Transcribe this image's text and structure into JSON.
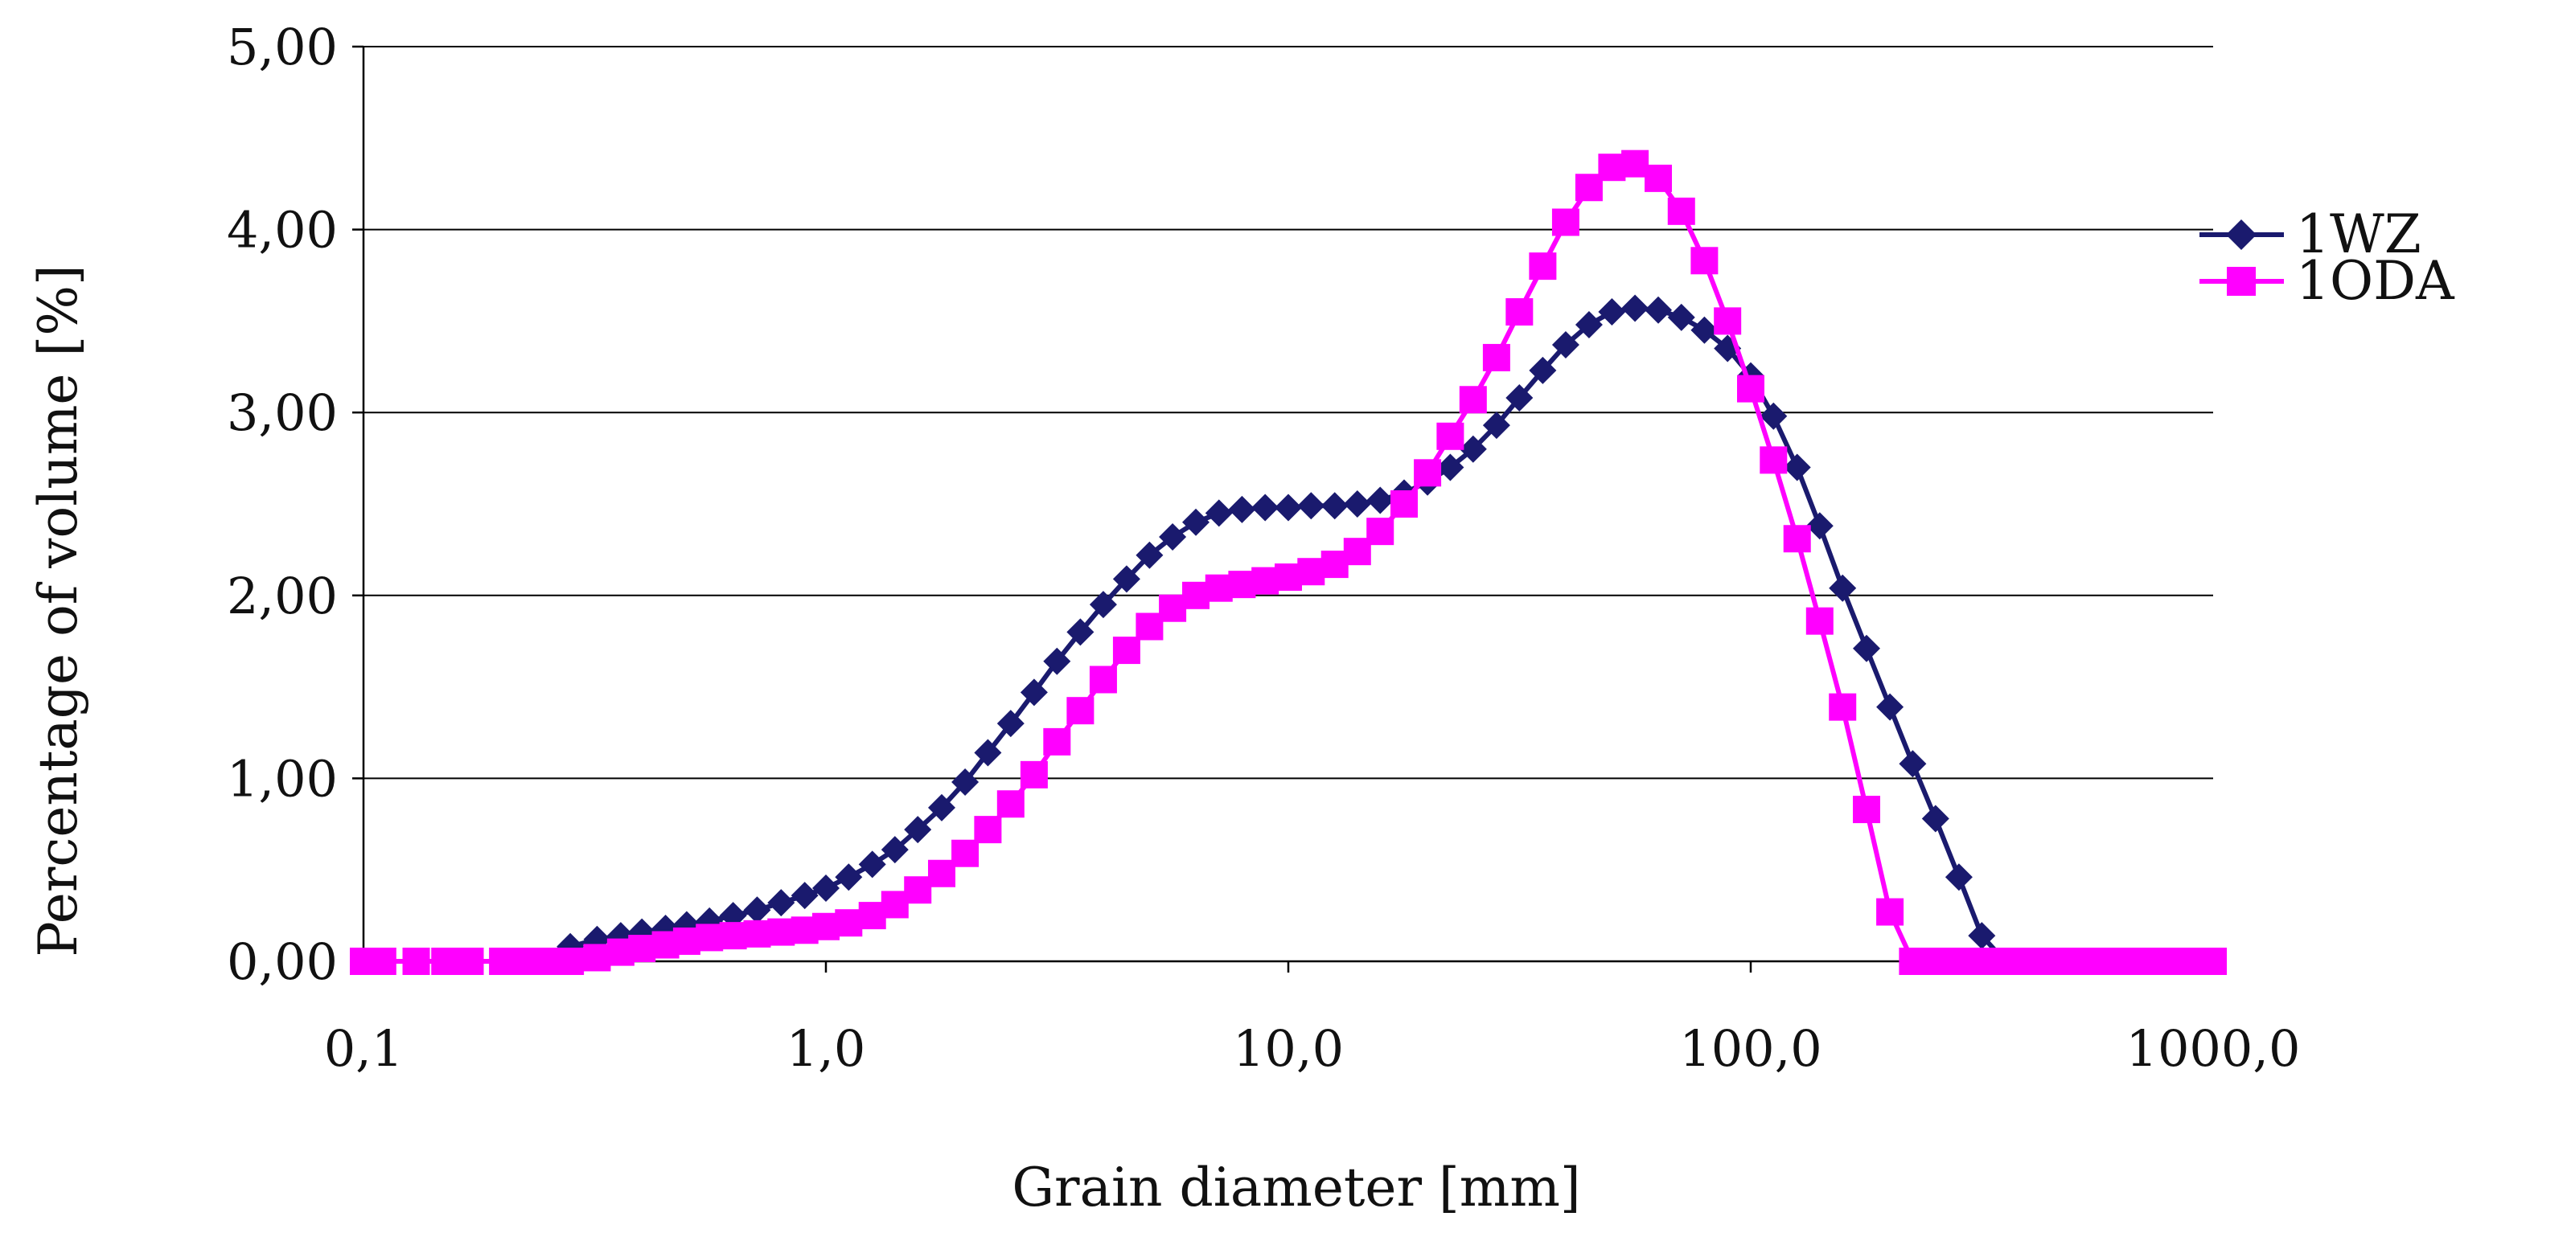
{
  "chart_data": {
    "type": "line",
    "title": "",
    "xlabel": "Grain diameter [mm]",
    "ylabel": "Percentage of volume [%]",
    "x_scale": "log",
    "xlim": [
      0.1,
      1000
    ],
    "ylim": [
      0,
      5
    ],
    "grid": "horizontal",
    "legend_position": "right",
    "x_tick_values": [
      0.1,
      1,
      10,
      100,
      1000
    ],
    "x_tick_labels": [
      "0,1",
      "1,0",
      "10,0",
      "100,0",
      "1000,0"
    ],
    "y_tick_values": [
      0,
      1,
      2,
      3,
      4,
      5
    ],
    "y_tick_labels": [
      "0,00",
      "1,00",
      "2,00",
      "3,00",
      "4,00",
      "5,00"
    ],
    "x": [
      0.1,
      0.11,
      0.13,
      0.15,
      0.17,
      0.2,
      0.22,
      0.25,
      0.28,
      0.32,
      0.36,
      0.4,
      0.45,
      0.5,
      0.56,
      0.63,
      0.71,
      0.8,
      0.9,
      1.0,
      1.12,
      1.26,
      1.41,
      1.58,
      1.78,
      2.0,
      2.24,
      2.51,
      2.82,
      3.16,
      3.55,
      3.98,
      4.47,
      5.01,
      5.62,
      6.31,
      7.08,
      7.94,
      8.91,
      10.0,
      11.2,
      12.6,
      14.1,
      15.8,
      17.8,
      20.0,
      22.4,
      25.1,
      28.2,
      31.6,
      35.5,
      39.8,
      44.7,
      50.1,
      56.2,
      63.1,
      70.8,
      79.4,
      89.1,
      100.0,
      112.0,
      126.0,
      141.0,
      158.0,
      178.0,
      200.0,
      224.0,
      251.0,
      282.0,
      316.0,
      355.0,
      398.0,
      447.0,
      501.0,
      562.0,
      631.0,
      708.0,
      794.0,
      891.0,
      1000.0
    ],
    "series": [
      {
        "name": "1WZ",
        "color": "#1a1a6e",
        "marker": "diamond",
        "values": [
          0,
          0,
          0,
          0,
          0,
          0,
          0,
          0,
          0.08,
          0.12,
          0.14,
          0.16,
          0.18,
          0.2,
          0.22,
          0.25,
          0.28,
          0.32,
          0.36,
          0.4,
          0.46,
          0.53,
          0.61,
          0.72,
          0.84,
          0.98,
          1.14,
          1.3,
          1.47,
          1.64,
          1.8,
          1.95,
          2.09,
          2.22,
          2.32,
          2.4,
          2.45,
          2.47,
          2.48,
          2.48,
          2.49,
          2.49,
          2.5,
          2.52,
          2.56,
          2.62,
          2.7,
          2.8,
          2.93,
          3.08,
          3.23,
          3.37,
          3.48,
          3.55,
          3.57,
          3.56,
          3.52,
          3.45,
          3.35,
          3.2,
          2.98,
          2.7,
          2.38,
          2.04,
          1.71,
          1.39,
          1.08,
          0.78,
          0.46,
          0.14,
          0,
          0,
          0,
          0,
          0,
          0,
          0,
          0,
          0,
          0
        ]
      },
      {
        "name": "1ODA",
        "color": "#ff00ff",
        "marker": "square",
        "values": [
          0,
          0,
          0,
          0,
          0,
          0,
          0,
          0,
          0,
          0.02,
          0.05,
          0.07,
          0.09,
          0.11,
          0.13,
          0.14,
          0.15,
          0.16,
          0.17,
          0.19,
          0.21,
          0.25,
          0.31,
          0.39,
          0.48,
          0.59,
          0.72,
          0.86,
          1.02,
          1.2,
          1.37,
          1.54,
          1.7,
          1.83,
          1.93,
          2.0,
          2.04,
          2.06,
          2.08,
          2.1,
          2.13,
          2.17,
          2.24,
          2.35,
          2.5,
          2.67,
          2.87,
          3.07,
          3.3,
          3.55,
          3.8,
          4.04,
          4.23,
          4.34,
          4.36,
          4.28,
          4.1,
          3.83,
          3.5,
          3.13,
          2.74,
          2.31,
          1.86,
          1.39,
          0.83,
          0.27,
          0,
          0,
          0,
          0,
          0,
          0,
          0,
          0,
          0,
          0,
          0,
          0,
          0,
          0
        ]
      }
    ]
  }
}
